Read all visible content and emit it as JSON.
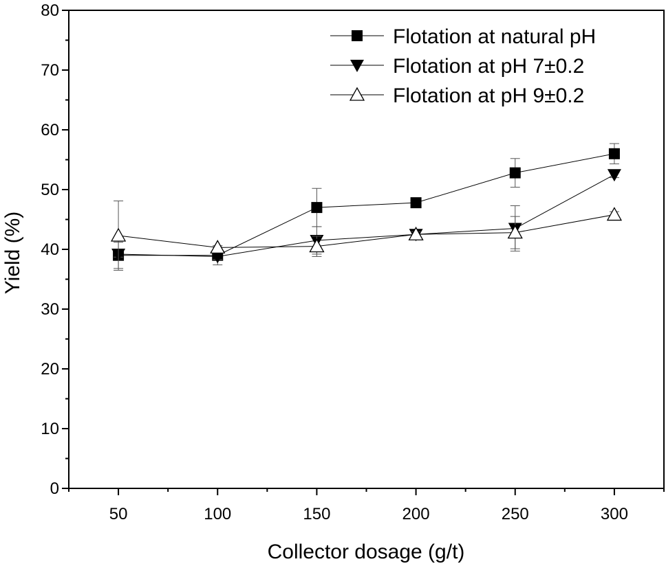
{
  "chart_data": {
    "type": "line",
    "title": "",
    "xlabel": "Collector dosage (g/t)",
    "ylabel": "Yield (%)",
    "xlim": [
      25,
      325
    ],
    "ylim": [
      0,
      80
    ],
    "x": [
      50,
      100,
      150,
      200,
      250,
      300
    ],
    "xticks": [
      50,
      100,
      150,
      200,
      250,
      300
    ],
    "yticks": [
      0,
      10,
      20,
      30,
      40,
      50,
      60,
      70,
      80
    ],
    "legend_position": "top-right",
    "series": [
      {
        "name": "Flotation at natural pH",
        "marker": "square-filled",
        "values": [
          39.0,
          39.0,
          47.0,
          47.8,
          52.8,
          56.0
        ],
        "errors": [
          2.2,
          1.6,
          3.2,
          0.5,
          2.4,
          1.7
        ]
      },
      {
        "name": "Flotation at pH 7±0.2",
        "marker": "triangle-down-filled",
        "values": [
          39.2,
          38.8,
          41.5,
          42.5,
          43.5,
          52.5
        ],
        "errors": [
          0.5,
          0.5,
          2.3,
          0.5,
          3.8,
          0.5
        ]
      },
      {
        "name": "Flotation at pH 9±0.2",
        "marker": "triangle-up-open",
        "values": [
          42.3,
          40.3,
          40.5,
          42.5,
          42.8,
          45.8
        ],
        "errors": [
          5.8,
          0.3,
          1.7,
          0.5,
          2.7,
          0.5
        ]
      }
    ]
  },
  "colors": {
    "axis": "#000000",
    "series_line": "#000000",
    "marker_fill": "#000000",
    "open_marker_fill": "#ffffff",
    "error_bar": "#555555"
  }
}
